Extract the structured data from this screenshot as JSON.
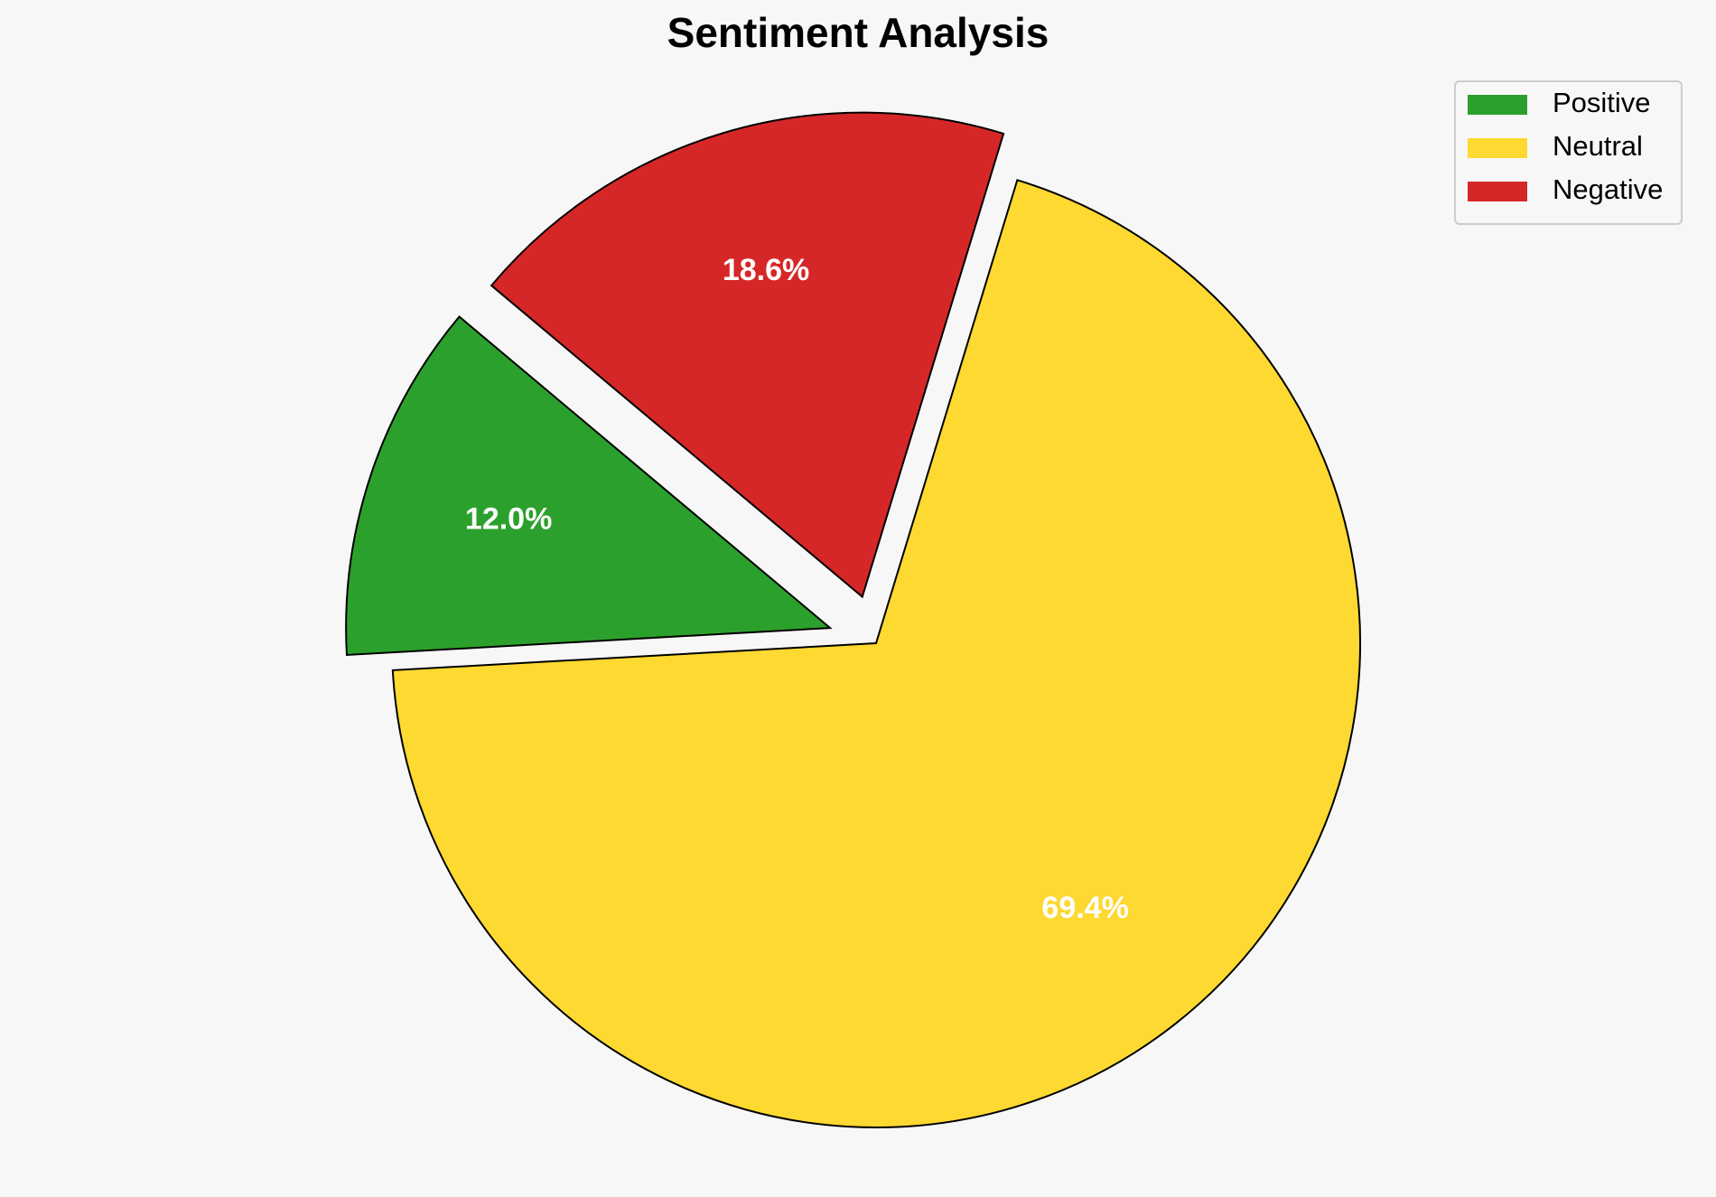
{
  "chart_data": {
    "type": "pie",
    "title": "Sentiment Analysis",
    "categories": [
      "Positive",
      "Neutral",
      "Negative"
    ],
    "values": [
      12.0,
      69.4,
      18.6
    ],
    "value_labels": [
      "12.0%",
      "69.4%",
      "18.6%"
    ],
    "colors": [
      "#2ca02c",
      "#fdd931",
      "#d62728"
    ],
    "legend": "upper right"
  }
}
